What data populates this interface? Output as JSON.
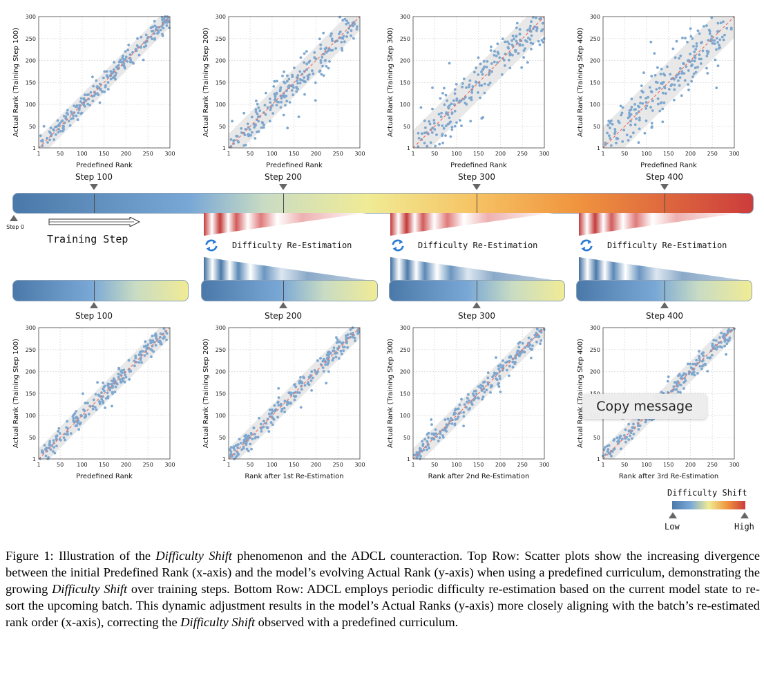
{
  "figure": {
    "axis_ticks": [
      "1",
      "50",
      "100",
      "150",
      "200",
      "250",
      "300"
    ],
    "top_row": [
      {
        "xlabel": "Predefined Rank",
        "ylabel": "Actual Rank (Training Step 100)",
        "spread": 30,
        "band": 24
      },
      {
        "xlabel": "Predefined Rank",
        "ylabel": "Actual Rank (Training Step 200)",
        "spread": 62,
        "band": 32
      },
      {
        "xlabel": "Predefined Rank",
        "ylabel": "Actual Rank (Training Step 300)",
        "spread": 82,
        "band": 40
      },
      {
        "xlabel": "Predefined Rank",
        "ylabel": "Actual Rank (Training Step 400)",
        "spread": 100,
        "band": 48
      }
    ],
    "bottom_row": [
      {
        "xlabel": "Predefined Rank",
        "ylabel": "Actual Rank (Training Step 100)",
        "spread": 32,
        "band": 24
      },
      {
        "xlabel": "Rank after 1st Re-Estimation",
        "ylabel": "Actual Rank (Training Step 200)",
        "spread": 33,
        "band": 24
      },
      {
        "xlabel": "Rank after 2nd Re-Estimation",
        "ylabel": "Actual Rank (Training Step 300)",
        "spread": 33,
        "band": 24
      },
      {
        "xlabel": "Rank after 3rd Re-Estimation",
        "ylabel": "Actual Rank (Training Step 400)",
        "spread": 33,
        "band": 24
      }
    ],
    "timeline": {
      "step_labels": [
        "Step 100",
        "Step 200",
        "Step 300",
        "Step 400"
      ],
      "step0_label": "Step 0",
      "training_label": "Training Step",
      "reestimation_label": "Difficulty Re-Estimation"
    },
    "bottom_step_labels": [
      "Step 100",
      "Step 200",
      "Step 300",
      "Step 400"
    ],
    "legend": {
      "title": "Difficulty Shift",
      "low": "Low",
      "high": "High"
    },
    "colors": {
      "point": "#7da7cf",
      "diag": "#f07060",
      "band": "#e6e6e6",
      "low": "#4a79a9",
      "mid": "#f1eb95",
      "high": "#cc3c3c"
    }
  },
  "caption": {
    "label": "Figure 1:",
    "p1": "Illustration of the",
    "em1": "Difficulty Shift",
    "p2": "phenomenon and the ADCL counteraction. Top Row: Scatter plots show the increasing divergence between the initial Predefined Rank (x-axis) and the model’s evolving Actual Rank (y-axis) when using a predefined curriculum, demonstrating the growing",
    "em2": "Difficulty Shift",
    "p3": "over training steps. Bottom Row: ADCL employs periodic difficulty re-estimation based on the current model state to re-sort the upcoming batch. This dynamic adjustment results in the model’s Actual Ranks (y-axis) more closely aligning with the batch’s re-estimated rank order (x-axis), correcting the",
    "em3": "Difficulty Shift",
    "p4": "observed with a predefined curriculum."
  },
  "tooltip": {
    "label": "Copy message"
  }
}
